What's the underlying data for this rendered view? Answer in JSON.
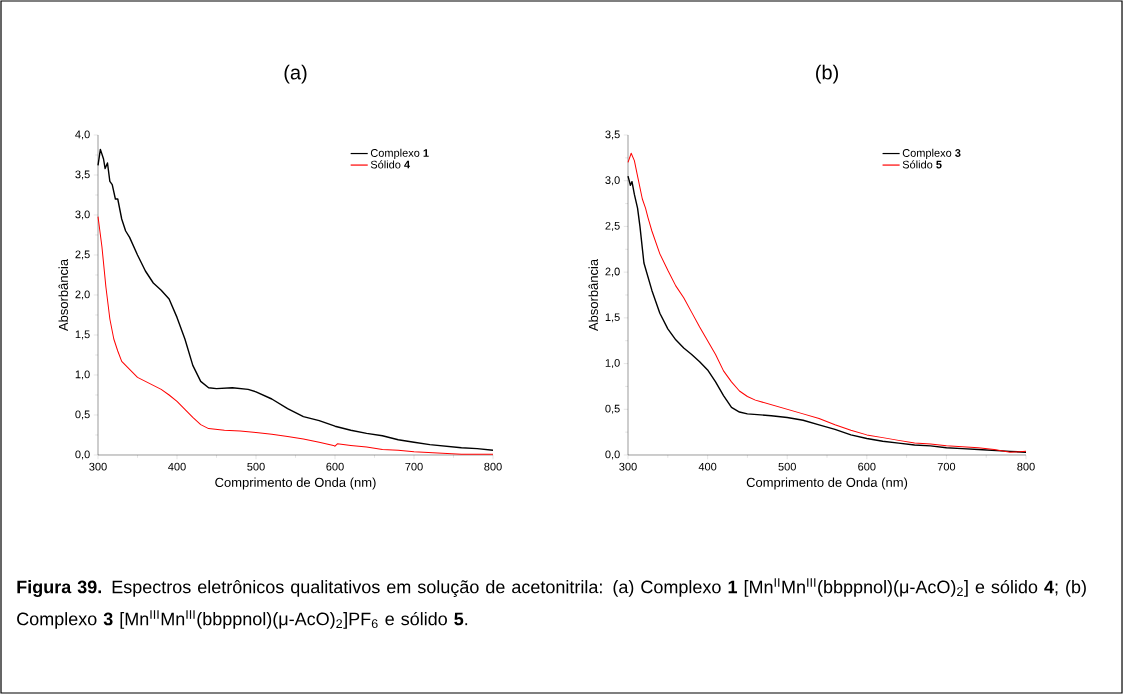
{
  "chart_data": [
    {
      "type": "line",
      "title": "(a)",
      "xlabel": "Comprimento de Onda (nm)",
      "ylabel": "Absorbância",
      "legend": "top right",
      "grid": false,
      "xlim": [
        300,
        800
      ],
      "ylim": [
        0,
        4
      ],
      "xticks": [
        300,
        400,
        500,
        600,
        700,
        800
      ],
      "yticks": [
        {
          "value": 0,
          "label": "0,0"
        },
        {
          "value": 0.5,
          "label": "0,5"
        },
        {
          "value": 1,
          "label": "1,0"
        },
        {
          "value": 1.5,
          "label": "1,5"
        },
        {
          "value": 2,
          "label": "2,0"
        },
        {
          "value": 2.5,
          "label": "2,5"
        },
        {
          "value": 3,
          "label": "3,0"
        },
        {
          "value": 3.5,
          "label": "3,5"
        },
        {
          "value": 4,
          "label": "4,0"
        }
      ],
      "series": [
        {
          "name": "Complexo **1**",
          "color": "#000000",
          "x": [
            300,
            303,
            307,
            309,
            312,
            315,
            318,
            322,
            325,
            330,
            335,
            340,
            350,
            360,
            370,
            380,
            390,
            400,
            410,
            420,
            430,
            440,
            450,
            470,
            490,
            500,
            520,
            540,
            560,
            580,
            600,
            620,
            640,
            660,
            680,
            700,
            720,
            740,
            760,
            780,
            800
          ],
          "values": [
            3.62,
            3.82,
            3.7,
            3.58,
            3.65,
            3.42,
            3.38,
            3.2,
            3.2,
            2.95,
            2.8,
            2.72,
            2.5,
            2.3,
            2.15,
            2.06,
            1.95,
            1.72,
            1.45,
            1.12,
            0.92,
            0.84,
            0.83,
            0.84,
            0.82,
            0.79,
            0.7,
            0.58,
            0.48,
            0.43,
            0.36,
            0.31,
            0.27,
            0.24,
            0.19,
            0.16,
            0.13,
            0.11,
            0.09,
            0.08,
            0.06
          ]
        },
        {
          "name": "Sólido **4**",
          "color": "#ff0000",
          "x": [
            300,
            305,
            310,
            315,
            320,
            325,
            330,
            340,
            350,
            360,
            370,
            380,
            390,
            400,
            410,
            420,
            430,
            440,
            460,
            480,
            500,
            520,
            540,
            560,
            580,
            598,
            600,
            603,
            620,
            640,
            660,
            680,
            700,
            720,
            740,
            760,
            780,
            800
          ],
          "values": [
            2.98,
            2.6,
            2.1,
            1.7,
            1.45,
            1.3,
            1.17,
            1.07,
            0.97,
            0.92,
            0.87,
            0.82,
            0.75,
            0.67,
            0.57,
            0.47,
            0.38,
            0.33,
            0.31,
            0.3,
            0.28,
            0.26,
            0.23,
            0.2,
            0.16,
            0.12,
            0.11,
            0.14,
            0.12,
            0.1,
            0.07,
            0.06,
            0.04,
            0.03,
            0.02,
            0.01,
            0.01,
            0.01
          ]
        }
      ]
    },
    {
      "type": "line",
      "title": "(b)",
      "xlabel": "Comprimento de Onda (nm)",
      "ylabel": "Absorbância",
      "legend": "top right",
      "grid": false,
      "xlim": [
        300,
        800
      ],
      "ylim": [
        0,
        3.5
      ],
      "xticks": [
        300,
        400,
        500,
        600,
        700,
        800
      ],
      "yticks": [
        {
          "value": 0,
          "label": "0,0"
        },
        {
          "value": 0.5,
          "label": "0,5"
        },
        {
          "value": 1,
          "label": "1,0"
        },
        {
          "value": 1.5,
          "label": "1,5"
        },
        {
          "value": 2,
          "label": "2,0"
        },
        {
          "value": 2.5,
          "label": "2,5"
        },
        {
          "value": 3,
          "label": "3,0"
        },
        {
          "value": 3.5,
          "label": "3,5"
        }
      ],
      "annotations": [
        "**Figura 39.** Espectros eletrônicos qualitativos em solução de acetonitrila: (a) Complexo **1** [Mn$^{II}$Mn$^{III}$(bbppnol)(μ-AcO)$_{2}$] e sólido **4**; (b) Complexo **3** [Mn$^{III}$Mn$^{III}$(bbppnol)(μ-AcO)$_{2}$]PF$_{6}$ e sólido **5**."
      ],
      "series": [
        {
          "name": "Complexo **3**",
          "color": "#000000",
          "x": [
            300,
            303,
            305,
            308,
            312,
            315,
            320,
            325,
            330,
            340,
            350,
            360,
            370,
            380,
            390,
            400,
            410,
            420,
            430,
            440,
            450,
            480,
            500,
            520,
            540,
            560,
            580,
            600,
            620,
            640,
            660,
            680,
            700,
            720,
            740,
            760,
            780,
            800
          ],
          "values": [
            3.05,
            2.95,
            2.99,
            2.85,
            2.7,
            2.5,
            2.1,
            1.95,
            1.8,
            1.55,
            1.38,
            1.26,
            1.17,
            1.1,
            1.02,
            0.93,
            0.8,
            0.65,
            0.52,
            0.47,
            0.45,
            0.43,
            0.41,
            0.38,
            0.33,
            0.28,
            0.22,
            0.18,
            0.15,
            0.13,
            0.11,
            0.1,
            0.08,
            0.07,
            0.06,
            0.05,
            0.04,
            0.03
          ]
        },
        {
          "name": "Sólido **5**",
          "color": "#ff0000",
          "x": [
            300,
            304,
            308,
            312,
            318,
            322,
            325,
            330,
            340,
            350,
            360,
            370,
            380,
            390,
            400,
            410,
            420,
            430,
            440,
            450,
            460,
            480,
            500,
            520,
            540,
            560,
            580,
            600,
            620,
            640,
            660,
            680,
            700,
            720,
            740,
            760,
            780,
            800
          ],
          "values": [
            3.2,
            3.3,
            3.22,
            3.05,
            2.8,
            2.7,
            2.6,
            2.45,
            2.2,
            2.02,
            1.85,
            1.72,
            1.56,
            1.4,
            1.25,
            1.1,
            0.92,
            0.8,
            0.7,
            0.64,
            0.6,
            0.55,
            0.5,
            0.45,
            0.4,
            0.33,
            0.27,
            0.22,
            0.19,
            0.16,
            0.13,
            0.12,
            0.1,
            0.09,
            0.08,
            0.06,
            0.03,
            0.04
          ]
        }
      ]
    }
  ]
}
